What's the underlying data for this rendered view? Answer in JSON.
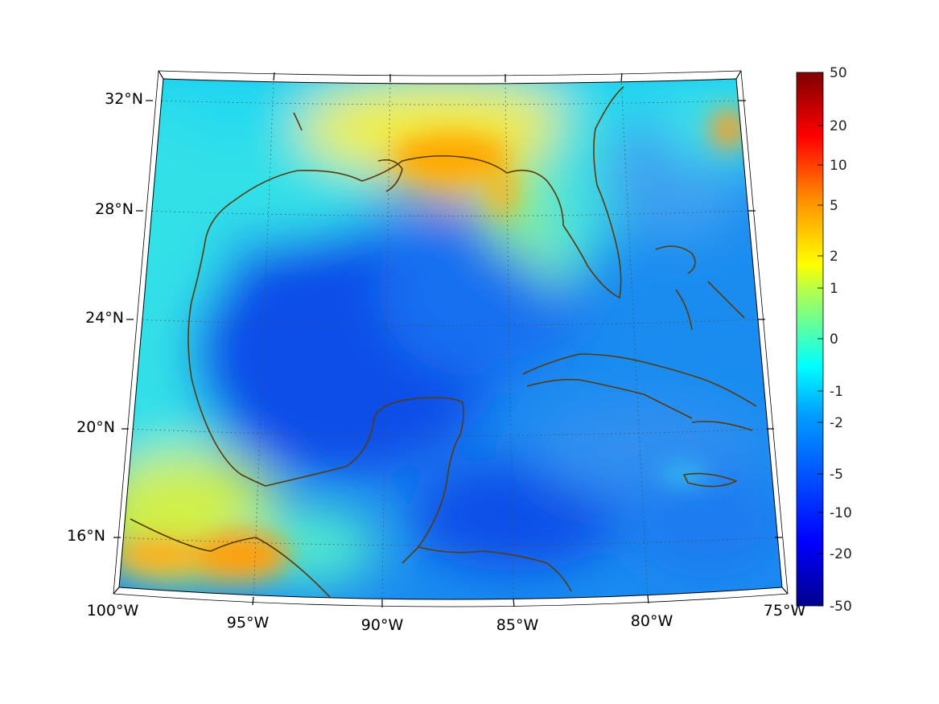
{
  "map": {
    "region": "Gulf of Mexico and Caribbean",
    "lon_ticks": [
      "100°W",
      "95°W",
      "90°W",
      "85°W",
      "80°W",
      "75°W"
    ],
    "lat_ticks": [
      "32°N",
      "28°N",
      "24°N",
      "20°N",
      "16°N"
    ],
    "coastline_color": "#5a3a0a",
    "grid": "dotted"
  },
  "colorbar": {
    "labels": [
      "50",
      "20",
      "10",
      "5",
      "2",
      "1",
      "0",
      "-1",
      "-2",
      "-5",
      "-10",
      "-20",
      "-50"
    ],
    "colormap": "jet"
  }
}
